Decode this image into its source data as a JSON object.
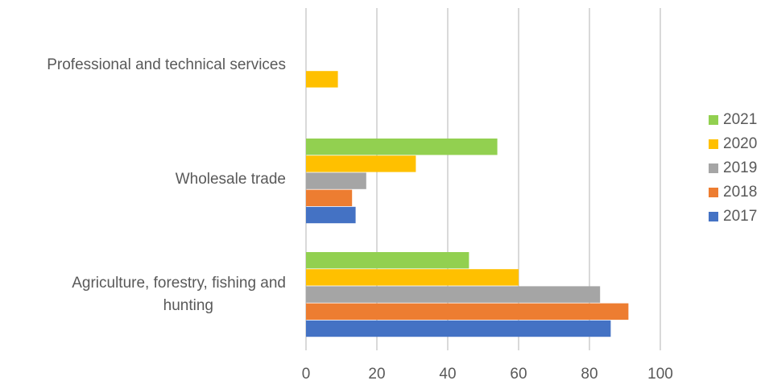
{
  "chart_data": {
    "type": "bar",
    "orientation": "horizontal",
    "categories": [
      "Professional and technical services",
      "Wholesale trade",
      "Agriculture, forestry, fishing and hunting"
    ],
    "category_display": [
      [
        "Professional and technical services"
      ],
      [
        "Wholesale trade"
      ],
      [
        "Agriculture, forestry, fishing and",
        "hunting"
      ]
    ],
    "series": [
      {
        "name": "2021",
        "color": "#92D050",
        "values": [
          0,
          54,
          46
        ]
      },
      {
        "name": "2020",
        "color": "#FFC000",
        "values": [
          9,
          31,
          60
        ]
      },
      {
        "name": "2019",
        "color": "#A5A5A5",
        "values": [
          0,
          17,
          83
        ]
      },
      {
        "name": "2018",
        "color": "#ED7D31",
        "values": [
          0,
          13,
          91
        ]
      },
      {
        "name": "2017",
        "color": "#4472C4",
        "values": [
          0,
          14,
          86
        ]
      }
    ],
    "x_ticks": [
      0,
      20,
      40,
      60,
      80,
      100
    ],
    "xlim": [
      0,
      100
    ],
    "grid": "vertical",
    "legend_position": "right"
  }
}
